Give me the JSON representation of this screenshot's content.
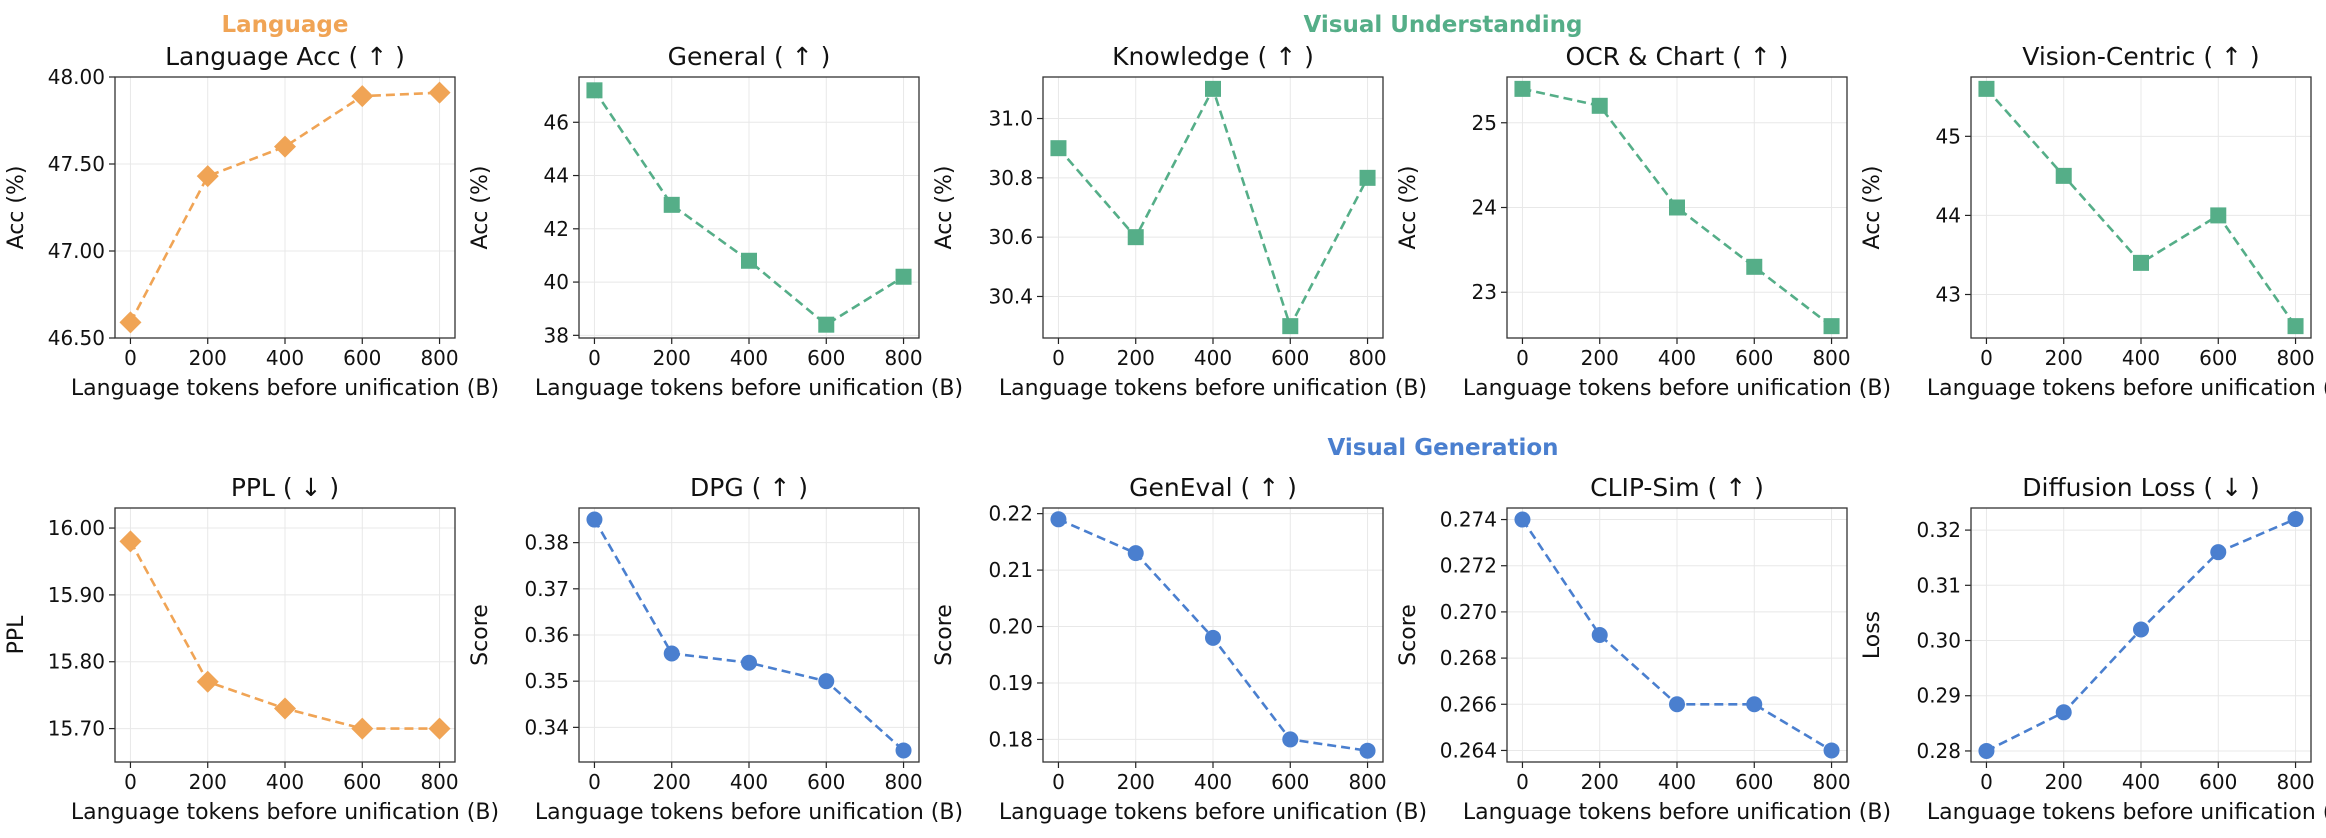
{
  "colors": {
    "language": "#f0a455",
    "understanding": "#55ae88",
    "generation": "#4a7fcf"
  },
  "section_titles": {
    "language": "Language",
    "understanding": "Visual Understanding",
    "generation": "Visual Generation"
  },
  "chart_data": [
    {
      "type": "line",
      "title": "Language Acc ( ↑ )",
      "xlabel": "Language tokens before unification (B)",
      "ylabel": "Acc (%)",
      "x": [
        0,
        200,
        400,
        600,
        800
      ],
      "values": [
        46.59,
        47.43,
        47.6,
        47.89,
        47.91
      ],
      "ylim": [
        46.5,
        48.0
      ],
      "yticks": [
        46.5,
        47.0,
        47.5,
        48.0
      ],
      "ytick_labels": [
        "46.50",
        "47.00",
        "47.50",
        "48.00"
      ],
      "marker": "diamond",
      "color_key": "language",
      "grid": true
    },
    {
      "type": "line",
      "title": "General ( ↑ )",
      "xlabel": "Language tokens before unification (B)",
      "ylabel": "Acc (%)",
      "x": [
        0,
        200,
        400,
        600,
        800
      ],
      "values": [
        47.2,
        42.9,
        40.8,
        38.4,
        40.2
      ],
      "ylim": [
        37.9,
        47.7
      ],
      "yticks": [
        38,
        40,
        42,
        44,
        46
      ],
      "ytick_labels": [
        "38",
        "40",
        "42",
        "44",
        "46"
      ],
      "marker": "square",
      "color_key": "understanding",
      "grid": true
    },
    {
      "type": "line",
      "title": "Knowledge ( ↑ )",
      "xlabel": "Language tokens before unification (B)",
      "ylabel": "Acc (%)",
      "x": [
        0,
        200,
        400,
        600,
        800
      ],
      "values": [
        30.9,
        30.6,
        31.1,
        30.3,
        30.8
      ],
      "ylim": [
        30.26,
        31.14
      ],
      "yticks": [
        30.4,
        30.6,
        30.8,
        31.0
      ],
      "ytick_labels": [
        "30.4",
        "30.6",
        "30.8",
        "31.0"
      ],
      "marker": "square",
      "color_key": "understanding",
      "grid": true
    },
    {
      "type": "line",
      "title": "OCR & Chart ( ↑ )",
      "xlabel": "Language tokens before unification (B)",
      "ylabel": "Acc (%)",
      "x": [
        0,
        200,
        400,
        600,
        800
      ],
      "values": [
        25.4,
        25.2,
        24.0,
        23.3,
        22.6
      ],
      "ylim": [
        22.46,
        25.54
      ],
      "yticks": [
        23,
        24,
        25
      ],
      "ytick_labels": [
        "23",
        "24",
        "25"
      ],
      "marker": "square",
      "color_key": "understanding",
      "grid": true
    },
    {
      "type": "line",
      "title": "Vision-Centric ( ↑ )",
      "xlabel": "Language tokens before unification (B)",
      "ylabel": "Acc (%)",
      "x": [
        0,
        200,
        400,
        600,
        800
      ],
      "values": [
        45.6,
        44.5,
        43.4,
        44.0,
        42.6
      ],
      "ylim": [
        42.45,
        45.75
      ],
      "yticks": [
        43,
        44,
        45
      ],
      "ytick_labels": [
        "43",
        "44",
        "45"
      ],
      "marker": "square",
      "color_key": "understanding",
      "grid": true
    },
    {
      "type": "line",
      "title": "PPL ( ↓ )",
      "xlabel": "Language tokens before unification (B)",
      "ylabel": "PPL",
      "x": [
        0,
        200,
        400,
        600,
        800
      ],
      "values": [
        15.98,
        15.77,
        15.73,
        15.7,
        15.7
      ],
      "ylim": [
        15.65,
        16.03
      ],
      "yticks": [
        15.7,
        15.8,
        15.9,
        16.0
      ],
      "ytick_labels": [
        "15.70",
        "15.80",
        "15.90",
        "16.00"
      ],
      "marker": "diamond",
      "color_key": "language",
      "grid": true
    },
    {
      "type": "line",
      "title": "DPG ( ↑ )",
      "xlabel": "Language tokens before unification (B)",
      "ylabel": "Score",
      "x": [
        0,
        200,
        400,
        600,
        800
      ],
      "values": [
        0.385,
        0.356,
        0.354,
        0.35,
        0.335
      ],
      "ylim": [
        0.3325,
        0.3875
      ],
      "yticks": [
        0.34,
        0.35,
        0.36,
        0.37,
        0.38
      ],
      "ytick_labels": [
        "0.34",
        "0.35",
        "0.36",
        "0.37",
        "0.38"
      ],
      "marker": "circle",
      "color_key": "generation",
      "grid": true
    },
    {
      "type": "line",
      "title": "GenEval ( ↑ )",
      "xlabel": "Language tokens before unification (B)",
      "ylabel": "Score",
      "x": [
        0,
        200,
        400,
        600,
        800
      ],
      "values": [
        0.219,
        0.213,
        0.198,
        0.18,
        0.178
      ],
      "ylim": [
        0.176,
        0.221
      ],
      "yticks": [
        0.18,
        0.19,
        0.2,
        0.21,
        0.22
      ],
      "ytick_labels": [
        "0.18",
        "0.19",
        "0.20",
        "0.21",
        "0.22"
      ],
      "marker": "circle",
      "color_key": "generation",
      "grid": true
    },
    {
      "type": "line",
      "title": "CLIP-Sim ( ↑ )",
      "xlabel": "Language tokens before unification (B)",
      "ylabel": "Score",
      "x": [
        0,
        200,
        400,
        600,
        800
      ],
      "values": [
        0.274,
        0.269,
        0.266,
        0.266,
        0.264
      ],
      "ylim": [
        0.2635,
        0.2745
      ],
      "yticks": [
        0.264,
        0.266,
        0.268,
        0.27,
        0.272,
        0.274
      ],
      "ytick_labels": [
        "0.264",
        "0.266",
        "0.268",
        "0.270",
        "0.272",
        "0.274"
      ],
      "marker": "circle",
      "color_key": "generation",
      "grid": true
    },
    {
      "type": "line",
      "title": "Diffusion Loss ( ↓ )",
      "xlabel": "Language tokens before unification (B)",
      "ylabel": "Loss",
      "x": [
        0,
        200,
        400,
        600,
        800
      ],
      "values": [
        0.28,
        0.287,
        0.302,
        0.316,
        0.322
      ],
      "ylim": [
        0.278,
        0.324
      ],
      "yticks": [
        0.28,
        0.29,
        0.3,
        0.31,
        0.32
      ],
      "ytick_labels": [
        "0.28",
        "0.29",
        "0.30",
        "0.31",
        "0.32"
      ],
      "marker": "circle",
      "color_key": "generation",
      "grid": true
    }
  ]
}
